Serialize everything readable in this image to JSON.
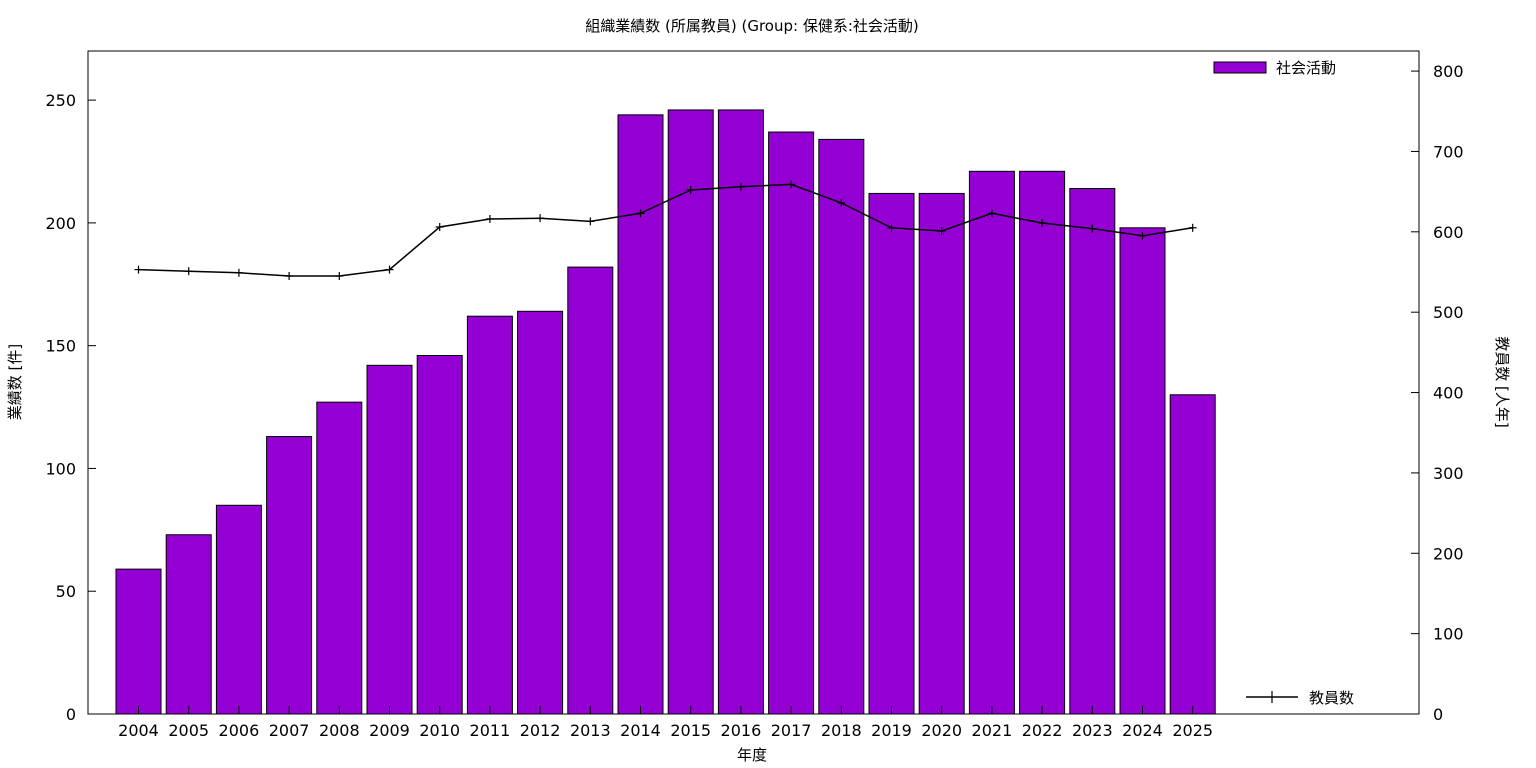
{
  "chart_data": {
    "type": "bar",
    "title": "組織業績数 (所属教員) (Group: 保健系:社会活動)",
    "xlabel": "年度",
    "ylabel": "業績数 [件]",
    "y2label": "教員数 [人年]",
    "categories": [
      "2004",
      "2005",
      "2006",
      "2007",
      "2008",
      "2009",
      "2010",
      "2011",
      "2012",
      "2013",
      "2014",
      "2015",
      "2016",
      "2017",
      "2018",
      "2019",
      "2020",
      "2021",
      "2022",
      "2023",
      "2024",
      "2025"
    ],
    "ylim": [
      0,
      270
    ],
    "y2lim": [
      0,
      825
    ],
    "yticks": [
      0,
      50,
      100,
      150,
      200,
      250
    ],
    "y2ticks": [
      0,
      100,
      200,
      300,
      400,
      500,
      600,
      700,
      800
    ],
    "grid": false,
    "series": [
      {
        "name": "社会活動",
        "type": "bar",
        "axis": "left",
        "color": "#9400d3",
        "values": [
          59,
          73,
          85,
          113,
          127,
          142,
          146,
          162,
          164,
          182,
          244,
          246,
          246,
          237,
          234,
          212,
          212,
          221,
          221,
          214,
          198,
          130
        ]
      },
      {
        "name": "教員数",
        "type": "line",
        "axis": "right",
        "color": "#000000",
        "values": [
          553,
          551,
          549,
          545,
          545,
          553,
          606,
          616,
          617,
          613,
          623,
          652,
          656,
          659,
          636,
          605,
          601,
          623,
          611,
          604,
          595,
          605
        ]
      }
    ],
    "legend": [
      {
        "label": "社会活動",
        "position": "top-right"
      },
      {
        "label": "教員数",
        "position": "bottom-right"
      }
    ]
  }
}
